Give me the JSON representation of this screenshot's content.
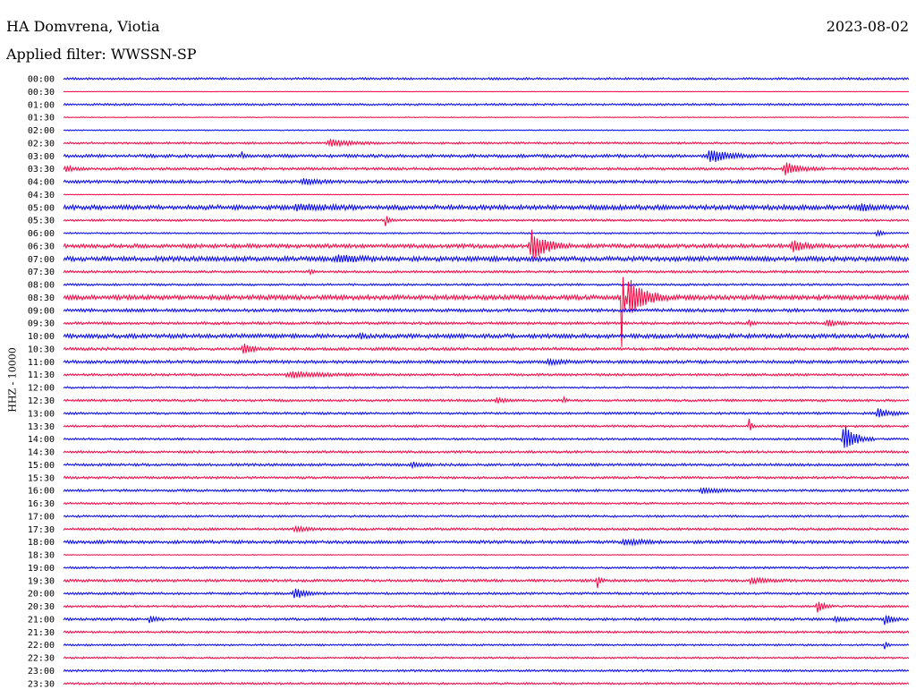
{
  "header": {
    "station": "HA Domvrena, Viotia",
    "date": "2023-08-02",
    "filter": "Applied filter: WWSSN-SP"
  },
  "chart_data": {
    "type": "line",
    "title": "HA Domvrena, Viotia",
    "date": "2023-08-02",
    "filter": "WWSSN-SP",
    "ylabel": "HHZ - 10000",
    "xlabel": "",
    "row_minutes": 30,
    "colors": [
      "#0000ff",
      "#ff0040"
    ],
    "rows": [
      "00:00",
      "00:30",
      "01:00",
      "01:30",
      "02:00",
      "02:30",
      "03:00",
      "03:30",
      "04:00",
      "04:30",
      "05:00",
      "05:30",
      "06:00",
      "06:30",
      "07:00",
      "07:30",
      "08:00",
      "08:30",
      "09:00",
      "09:30",
      "10:00",
      "10:30",
      "11:00",
      "11:30",
      "12:00",
      "12:30",
      "13:00",
      "13:30",
      "14:00",
      "14:30",
      "15:00",
      "15:30",
      "16:00",
      "16:30",
      "17:00",
      "17:30",
      "18:00",
      "18:30",
      "19:00",
      "19:30",
      "20:00",
      "20:30",
      "21:00",
      "21:30",
      "22:00",
      "22:30",
      "23:00",
      "23:30"
    ],
    "noise": [
      0.8,
      0.2,
      0.8,
      0.3,
      0.4,
      0.8,
      1.2,
      1.0,
      1.2,
      0.3,
      1.8,
      0.8,
      0.6,
      1.5,
      1.8,
      0.9,
      0.8,
      1.8,
      1.2,
      1.0,
      1.6,
      1.1,
      1.2,
      0.9,
      0.7,
      0.9,
      0.9,
      0.8,
      0.8,
      0.9,
      1.0,
      0.9,
      0.9,
      0.8,
      0.8,
      0.9,
      1.2,
      0.3,
      0.8,
      1.0,
      0.9,
      0.8,
      1.0,
      0.8,
      0.7,
      0.7,
      0.8,
      0.8
    ],
    "events": [
      {
        "row": 5,
        "start": 0.31,
        "duration": 0.07,
        "amplitude": 4
      },
      {
        "row": 6,
        "start": 0.21,
        "duration": 0.006,
        "amplitude": 6
      },
      {
        "row": 6,
        "start": 0.76,
        "duration": 0.06,
        "amplitude": 8
      },
      {
        "row": 7,
        "start": 0.0,
        "duration": 0.03,
        "amplitude": 3
      },
      {
        "row": 7,
        "start": 0.85,
        "duration": 0.05,
        "amplitude": 7
      },
      {
        "row": 8,
        "start": 0.28,
        "duration": 0.05,
        "amplitude": 3
      },
      {
        "row": 10,
        "start": 0.27,
        "duration": 0.08,
        "amplitude": 3
      },
      {
        "row": 10,
        "start": 0.94,
        "duration": 0.04,
        "amplitude": 4
      },
      {
        "row": 11,
        "start": 0.38,
        "duration": 0.01,
        "amplitude": 9
      },
      {
        "row": 12,
        "start": 0.96,
        "duration": 0.02,
        "amplitude": 4
      },
      {
        "row": 13,
        "start": 0.55,
        "duration": 0.05,
        "amplitude": 17
      },
      {
        "row": 13,
        "start": 0.86,
        "duration": 0.04,
        "amplitude": 6
      },
      {
        "row": 14,
        "start": 0.32,
        "duration": 0.06,
        "amplitude": 4
      },
      {
        "row": 15,
        "start": 0.29,
        "duration": 0.01,
        "amplitude": 4
      },
      {
        "row": 17,
        "start": 0.66,
        "duration": 0.005,
        "amplitude": 95
      },
      {
        "row": 17,
        "start": 0.665,
        "duration": 0.05,
        "amplitude": 24
      },
      {
        "row": 19,
        "start": 0.81,
        "duration": 0.01,
        "amplitude": 4
      },
      {
        "row": 19,
        "start": 0.9,
        "duration": 0.03,
        "amplitude": 4
      },
      {
        "row": 20,
        "start": 0.35,
        "duration": 0.01,
        "amplitude": 4
      },
      {
        "row": 21,
        "start": 0.21,
        "duration": 0.03,
        "amplitude": 6
      },
      {
        "row": 22,
        "start": 0.57,
        "duration": 0.04,
        "amplitude": 3
      },
      {
        "row": 23,
        "start": 0.26,
        "duration": 0.12,
        "amplitude": 3
      },
      {
        "row": 25,
        "start": 0.51,
        "duration": 0.03,
        "amplitude": 3
      },
      {
        "row": 25,
        "start": 0.59,
        "duration": 0.01,
        "amplitude": 4
      },
      {
        "row": 26,
        "start": 0.96,
        "duration": 0.04,
        "amplitude": 6
      },
      {
        "row": 27,
        "start": 0.81,
        "duration": 0.01,
        "amplitude": 8
      },
      {
        "row": 28,
        "start": 0.92,
        "duration": 0.04,
        "amplitude": 16
      },
      {
        "row": 30,
        "start": 0.41,
        "duration": 0.03,
        "amplitude": 3
      },
      {
        "row": 32,
        "start": 0.75,
        "duration": 0.06,
        "amplitude": 3
      },
      {
        "row": 35,
        "start": 0.27,
        "duration": 0.04,
        "amplitude": 3
      },
      {
        "row": 36,
        "start": 0.66,
        "duration": 0.06,
        "amplitude": 3
      },
      {
        "row": 39,
        "start": 0.63,
        "duration": 0.01,
        "amplitude": 10
      },
      {
        "row": 39,
        "start": 0.81,
        "duration": 0.05,
        "amplitude": 3
      },
      {
        "row": 40,
        "start": 0.27,
        "duration": 0.04,
        "amplitude": 6
      },
      {
        "row": 41,
        "start": 0.89,
        "duration": 0.02,
        "amplitude": 8
      },
      {
        "row": 42,
        "start": 0.1,
        "duration": 0.02,
        "amplitude": 4
      },
      {
        "row": 42,
        "start": 0.91,
        "duration": 0.03,
        "amplitude": 3
      },
      {
        "row": 42,
        "start": 0.97,
        "duration": 0.02,
        "amplitude": 8
      },
      {
        "row": 44,
        "start": 0.97,
        "duration": 0.01,
        "amplitude": 7
      }
    ]
  }
}
